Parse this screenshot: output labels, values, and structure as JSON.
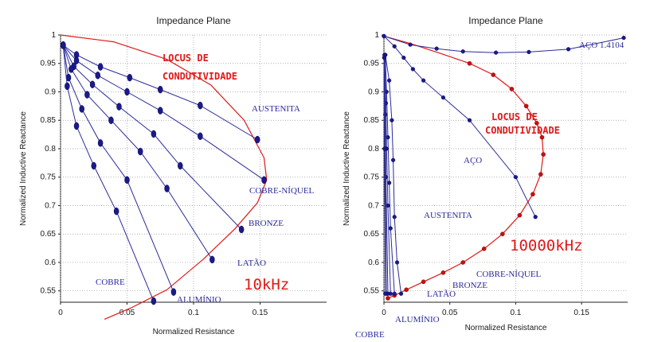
{
  "chart_data": [
    {
      "type": "line",
      "title": "Impedance Plane",
      "xlabel": "Normalized Resistance",
      "ylabel": "Normalized Inductive Reactance",
      "xlim": [
        0,
        0.2
      ],
      "ylim": [
        0.53,
        1.0
      ],
      "xticks": [
        "0",
        "0.05",
        "0.1",
        "0.15"
      ],
      "yticks": [
        "0.55",
        "0.6",
        "0.65",
        "0.7",
        "0.75",
        "0.8",
        "0.85",
        "0.9",
        "0.95",
        "1"
      ],
      "grid": "dotted",
      "frequency_label": "10kHz",
      "locus_label": [
        "LOCUS DE",
        "CONDUTIVIDADE"
      ],
      "locus": {
        "name": "LOCUS DE CONDUTIVIDADE",
        "color": "#e01818",
        "x": [
          0,
          0.04,
          0.08,
          0.113,
          0.138,
          0.153,
          0.155,
          0.148,
          0.131,
          0.107,
          0.08,
          0.053,
          0.033
        ],
        "y": [
          1.0,
          0.988,
          0.957,
          0.912,
          0.85,
          0.784,
          0.745,
          0.705,
          0.659,
          0.605,
          0.552,
          0.52,
          0.5
        ]
      },
      "series": [
        {
          "name": "AUSTENITA",
          "color": "#2b2b9a",
          "x": [
            0.002,
            0.012,
            0.03,
            0.052,
            0.075,
            0.105,
            0.148
          ],
          "y": [
            0.982,
            0.965,
            0.944,
            0.925,
            0.904,
            0.876,
            0.816
          ]
        },
        {
          "name": "COBRE-NÍQUEL",
          "color": "#2b2b9a",
          "x": [
            0.002,
            0.012,
            0.028,
            0.05,
            0.075,
            0.105,
            0.153
          ],
          "y": [
            0.982,
            0.955,
            0.929,
            0.9,
            0.867,
            0.822,
            0.745
          ]
        },
        {
          "name": "BRONZE",
          "color": "#2b2b9a",
          "x": [
            0.002,
            0.01,
            0.024,
            0.044,
            0.07,
            0.09,
            0.136
          ],
          "y": [
            0.982,
            0.945,
            0.913,
            0.874,
            0.826,
            0.77,
            0.658
          ]
        },
        {
          "name": "LATÃO",
          "color": "#2b2b9a",
          "x": [
            0.002,
            0.008,
            0.02,
            0.038,
            0.06,
            0.08,
            0.114
          ],
          "y": [
            0.982,
            0.94,
            0.895,
            0.85,
            0.795,
            0.73,
            0.605
          ]
        },
        {
          "name": "ALUMÍNIO",
          "color": "#2b2b9a",
          "x": [
            0.002,
            0.006,
            0.016,
            0.03,
            0.05,
            0.085
          ],
          "y": [
            0.982,
            0.925,
            0.87,
            0.81,
            0.745,
            0.548
          ]
        },
        {
          "name": "COBRE",
          "color": "#2b2b9a",
          "x": [
            0.002,
            0.005,
            0.012,
            0.025,
            0.042,
            0.07
          ],
          "y": [
            0.982,
            0.91,
            0.84,
            0.77,
            0.69,
            0.532
          ]
        }
      ]
    },
    {
      "type": "line",
      "title": "Impedance Plane",
      "xlabel": "Normalized Resistance",
      "ylabel": "Normalized Inductive Reactance",
      "xlim": [
        0,
        0.185
      ],
      "ylim": [
        0.53,
        1.0
      ],
      "xticks": [
        "0",
        "0.05",
        "0.1",
        "0.15"
      ],
      "yticks": [
        "0.55",
        "0.6",
        "0.65",
        "0.7",
        "0.75",
        "0.8",
        "0.85",
        "0.9",
        "0.95",
        "1"
      ],
      "grid": "dotted",
      "frequency_label": "10000kHz",
      "locus_label": [
        "LOCUS DE",
        "CONDUTIVIDADE"
      ],
      "locus": {
        "name": "LOCUS DE CONDUTIVIDADE",
        "color": "#e01818",
        "x": [
          0,
          0.02,
          0.045,
          0.065,
          0.083,
          0.097,
          0.108,
          0.116,
          0.12,
          0.121,
          0.119,
          0.113,
          0.103,
          0.09,
          0.076,
          0.06,
          0.045,
          0.03,
          0.017,
          0.008,
          0.003
        ],
        "y": [
          0.998,
          0.985,
          0.966,
          0.95,
          0.93,
          0.905,
          0.875,
          0.845,
          0.82,
          0.79,
          0.755,
          0.72,
          0.683,
          0.65,
          0.624,
          0.6,
          0.582,
          0.566,
          0.552,
          0.542,
          0.537
        ]
      },
      "series": [
        {
          "name": "AÇO 1.4104",
          "color": "#2b2b9a",
          "x": [
            0,
            0.02,
            0.04,
            0.06,
            0.085,
            0.11,
            0.14,
            0.182
          ],
          "y": [
            0.998,
            0.983,
            0.976,
            0.971,
            0.969,
            0.97,
            0.975,
            0.995
          ]
        },
        {
          "name": "AÇO",
          "color": "#2b2b9a",
          "x": [
            0,
            0.008,
            0.015,
            0.022,
            0.03,
            0.045,
            0.065,
            0.1,
            0.115
          ],
          "y": [
            0.998,
            0.98,
            0.96,
            0.94,
            0.92,
            0.89,
            0.85,
            0.75,
            0.68
          ]
        },
        {
          "name": "AUSTENITA",
          "color": "#2b2b9a",
          "x": [
            0.001,
            0.004,
            0.006,
            0.007,
            0.008,
            0.01,
            0.013
          ],
          "y": [
            0.965,
            0.92,
            0.85,
            0.78,
            0.68,
            0.6,
            0.545
          ]
        },
        {
          "name": "COBRE-NÍQUEL",
          "color": "#2b2b9a",
          "x": [
            0.001,
            0.002,
            0.003,
            0.004,
            0.005,
            0.008
          ],
          "y": [
            0.965,
            0.9,
            0.82,
            0.74,
            0.66,
            0.545
          ]
        },
        {
          "name": "BRONZE",
          "color": "#2b2b9a",
          "x": [
            0.0005,
            0.0015,
            0.002,
            0.003,
            0.005
          ],
          "y": [
            0.965,
            0.88,
            0.8,
            0.7,
            0.545
          ]
        },
        {
          "name": "LATÃO",
          "color": "#2b2b9a",
          "x": [
            0.0005,
            0.001,
            0.0015,
            0.003
          ],
          "y": [
            0.965,
            0.86,
            0.75,
            0.545
          ]
        },
        {
          "name": "ALUMÍNIO",
          "color": "#2b2b9a",
          "x": [
            0.0003,
            0.0008,
            0.002
          ],
          "y": [
            0.96,
            0.8,
            0.545
          ]
        },
        {
          "name": "COBRE",
          "color": "#2b2b9a",
          "x": [
            0.0002,
            0.0005,
            0.001
          ],
          "y": [
            0.96,
            0.8,
            0.545
          ]
        }
      ]
    }
  ]
}
